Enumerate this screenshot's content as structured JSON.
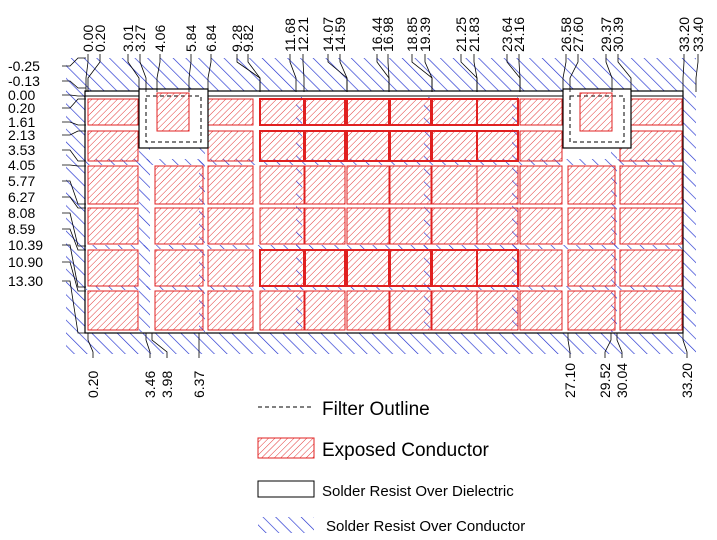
{
  "top_labels": [
    "0.00",
    "0.20",
    "3.01",
    "3.27",
    "4.06",
    "5.84",
    "6.84",
    "9.28",
    "9.82",
    "11.68",
    "12.21",
    "14.07",
    "14.59",
    "16.44",
    "16.98",
    "18.85",
    "19.39",
    "21.25",
    "21.83",
    "23.64",
    "24.16",
    "26.58",
    "27.60",
    "29.37",
    "30.39",
    "33.20",
    "33.40"
  ],
  "left_labels": [
    "-0.25",
    "-0.13",
    "0.00",
    "0.20",
    "1.61",
    "2.13",
    "3.53",
    "4.05",
    "5.77",
    "6.27",
    "8.08",
    "8.59",
    "10.39",
    "10.90",
    "13.30"
  ],
  "bottom_labels": [
    "0.20",
    "3.46",
    "3.98",
    "6.37",
    "27.10",
    "29.52",
    "30.04",
    "33.20"
  ],
  "legend": {
    "filter_outline": "Filter Outline",
    "exposed_conductor": "Exposed Conductor",
    "solder_resist_dielectric": "Solder Resist Over Dielectric",
    "solder_resist_conductor": "Solder Resist Over Conductor"
  },
  "colors": {
    "exposed_conductor": "#e02020",
    "solder_resist_conductor": "#2030d0",
    "outline": "#000000"
  }
}
